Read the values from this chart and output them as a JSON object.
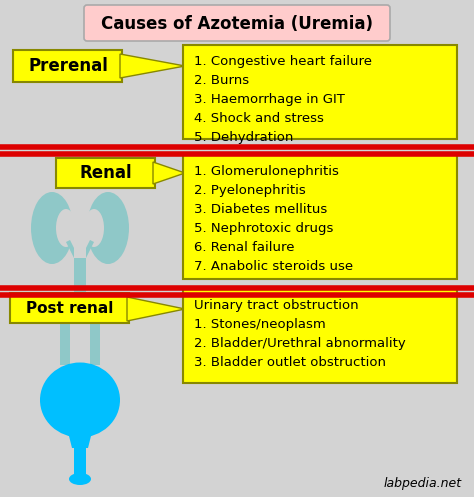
{
  "title": "Causes of Azotemia (Uremia)",
  "title_bg": "#ffcccc",
  "background_color": "#d3d3d3",
  "yellow": "#ffff00",
  "red_line": "#dd0000",
  "sections": [
    {
      "label": "Prerenal",
      "text": "1. Congestive heart failure\n2. Burns\n3. Haemorrhage in GIT\n4. Shock and stress\n5. Dehydration"
    },
    {
      "label": "Renal",
      "text": "1. Glomerulonephritis\n2. Pyelonephritis\n3. Diabetes mellitus\n5. Nephrotoxic drugs\n6. Renal failure\n7. Anabolic steroids use"
    },
    {
      "label": "Post renal",
      "text": "Urinary tract obstruction\n1. Stones/neoplasm\n2. Bladder/Urethral abnormality\n3. Bladder outlet obstruction"
    }
  ],
  "watermark": "labpedia.net",
  "kidney_color": "#8fc8c8",
  "bladder_color": "#00bfff"
}
